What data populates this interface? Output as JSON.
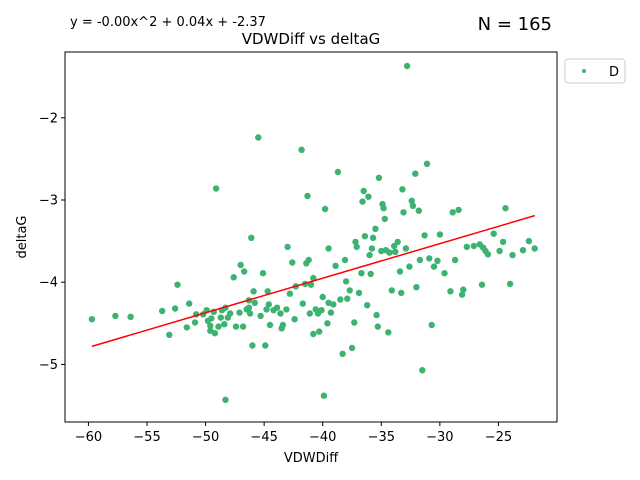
{
  "chart_data": {
    "type": "scatter",
    "title": "VDWDiff vs deltaG",
    "xlabel": "VDWDiff",
    "ylabel": "deltaG",
    "equation": "y = -0.00x^2 + 0.04x + -2.37",
    "n_label": "N = 165",
    "legend": {
      "label": "D",
      "placement": "top-right outside"
    },
    "xlim": [
      -62,
      -20
    ],
    "ylim": [
      -5.7,
      -1.2
    ],
    "xticks": [
      -60,
      -55,
      -50,
      -45,
      -40,
      -35,
      -30,
      -25
    ],
    "yticks": [
      -5,
      -4,
      -3,
      -2
    ],
    "xtick_labels": [
      "−60",
      "−55",
      "−50",
      "−45",
      "−40",
      "−35",
      "−30",
      "−25"
    ],
    "ytick_labels": [
      "−5",
      "−4",
      "−3",
      "−2"
    ],
    "grid": false,
    "point_color": "#3cb371",
    "fit_color": "#ff0000",
    "fit_line": [
      [
        -59.7,
        -4.78
      ],
      [
        -21.9,
        -3.19
      ]
    ],
    "points": [
      [
        -59.7,
        -4.45
      ],
      [
        -57.7,
        -4.41
      ],
      [
        -56.4,
        -4.42
      ],
      [
        -53.7,
        -4.35
      ],
      [
        -53.1,
        -4.64
      ],
      [
        -52.6,
        -4.32
      ],
      [
        -52.4,
        -4.03
      ],
      [
        -51.6,
        -4.55
      ],
      [
        -51.4,
        -4.26
      ],
      [
        -50.9,
        -4.49
      ],
      [
        -50.8,
        -4.39
      ],
      [
        -50.2,
        -4.39
      ],
      [
        -49.9,
        -4.34
      ],
      [
        -49.8,
        -4.47
      ],
      [
        -49.6,
        -4.53
      ],
      [
        -49.6,
        -4.59
      ],
      [
        -49.5,
        -4.44
      ],
      [
        -49.3,
        -4.36
      ],
      [
        -49.2,
        -4.62
      ],
      [
        -49.1,
        -2.86
      ],
      [
        -48.9,
        -4.54
      ],
      [
        -48.7,
        -4.43
      ],
      [
        -48.6,
        -4.34
      ],
      [
        -48.4,
        -4.51
      ],
      [
        -48.3,
        -4.31
      ],
      [
        -48.3,
        -5.43
      ],
      [
        -48.1,
        -4.43
      ],
      [
        -47.9,
        -4.38
      ],
      [
        -47.6,
        -3.94
      ],
      [
        -47.4,
        -4.54
      ],
      [
        -47.1,
        -4.37
      ],
      [
        -47.0,
        -3.79
      ],
      [
        -46.8,
        -4.54
      ],
      [
        -46.7,
        -3.87
      ],
      [
        -46.5,
        -4.33
      ],
      [
        -46.3,
        -4.22
      ],
      [
        -46.3,
        -4.31
      ],
      [
        -46.2,
        -4.38
      ],
      [
        -46.1,
        -3.46
      ],
      [
        -46.0,
        -4.77
      ],
      [
        -45.9,
        -4.11
      ],
      [
        -45.8,
        -4.25
      ],
      [
        -45.5,
        -2.24
      ],
      [
        -45.3,
        -4.41
      ],
      [
        -45.1,
        -3.89
      ],
      [
        -44.9,
        -4.77
      ],
      [
        -44.8,
        -4.33
      ],
      [
        -44.7,
        -4.11
      ],
      [
        -44.6,
        -4.27
      ],
      [
        -44.5,
        -4.52
      ],
      [
        -44.2,
        -4.34
      ],
      [
        -43.9,
        -4.31
      ],
      [
        -43.6,
        -4.38
      ],
      [
        -43.5,
        -4.56
      ],
      [
        -43.4,
        -4.52
      ],
      [
        -43.1,
        -4.33
      ],
      [
        -43.0,
        -3.57
      ],
      [
        -42.8,
        -4.14
      ],
      [
        -42.6,
        -3.76
      ],
      [
        -42.4,
        -4.45
      ],
      [
        -42.3,
        -4.05
      ],
      [
        -41.8,
        -2.39
      ],
      [
        -41.7,
        -4.26
      ],
      [
        -41.5,
        -4.02
      ],
      [
        -41.4,
        -3.77
      ],
      [
        -41.3,
        -2.95
      ],
      [
        -41.2,
        -3.73
      ],
      [
        -41.1,
        -4.38
      ],
      [
        -41.0,
        -4.03
      ],
      [
        -40.8,
        -3.95
      ],
      [
        -40.8,
        -4.63
      ],
      [
        -40.6,
        -4.33
      ],
      [
        -40.4,
        -4.38
      ],
      [
        -40.3,
        -4.6
      ],
      [
        -40.1,
        -4.34
      ],
      [
        -40.0,
        -4.18
      ],
      [
        -39.9,
        -5.38
      ],
      [
        -39.8,
        -3.11
      ],
      [
        -39.6,
        -4.5
      ],
      [
        -39.5,
        -4.25
      ],
      [
        -39.3,
        -4.37
      ],
      [
        -39.1,
        -4.27
      ],
      [
        -38.9,
        -3.8
      ],
      [
        -38.7,
        -2.66
      ],
      [
        -38.5,
        -4.21
      ],
      [
        -38.3,
        -4.87
      ],
      [
        -38.1,
        -3.73
      ],
      [
        -38.0,
        -3.99
      ],
      [
        -37.9,
        -4.2
      ],
      [
        -37.7,
        -4.1
      ],
      [
        -37.5,
        -4.8
      ],
      [
        -37.3,
        -4.49
      ],
      [
        -37.2,
        -3.51
      ],
      [
        -37.1,
        -3.57
      ],
      [
        -36.9,
        -4.13
      ],
      [
        -36.7,
        -3.89
      ],
      [
        -36.6,
        -3.02
      ],
      [
        -36.5,
        -2.89
      ],
      [
        -36.4,
        -3.44
      ],
      [
        -36.2,
        -4.28
      ],
      [
        -36.1,
        -2.96
      ],
      [
        -36.0,
        -3.67
      ],
      [
        -35.9,
        -3.9
      ],
      [
        -35.8,
        -3.59
      ],
      [
        -35.7,
        -3.46
      ],
      [
        -35.5,
        -3.35
      ],
      [
        -35.4,
        -4.4
      ],
      [
        -35.3,
        -4.54
      ],
      [
        -35.2,
        -2.73
      ],
      [
        -35.0,
        -3.62
      ],
      [
        -34.9,
        -3.05
      ],
      [
        -34.8,
        -3.1
      ],
      [
        -34.7,
        -3.23
      ],
      [
        -34.6,
        -3.61
      ],
      [
        -34.4,
        -4.61
      ],
      [
        -34.3,
        -3.64
      ],
      [
        -34.1,
        -4.1
      ],
      [
        -33.9,
        -3.56
      ],
      [
        -33.8,
        -3.63
      ],
      [
        -33.6,
        -3.51
      ],
      [
        -33.4,
        -3.87
      ],
      [
        -33.3,
        -4.13
      ],
      [
        -33.2,
        -2.87
      ],
      [
        -33.1,
        -3.15
      ],
      [
        -32.9,
        -3.59
      ],
      [
        -32.8,
        -1.37
      ],
      [
        -32.6,
        -3.81
      ],
      [
        -32.4,
        -3.01
      ],
      [
        -32.3,
        -3.07
      ],
      [
        -32.1,
        -2.68
      ],
      [
        -32.0,
        -4.06
      ],
      [
        -31.8,
        -3.13
      ],
      [
        -31.7,
        -3.73
      ],
      [
        -31.5,
        -5.07
      ],
      [
        -31.3,
        -3.43
      ],
      [
        -31.1,
        -2.56
      ],
      [
        -30.9,
        -3.71
      ],
      [
        -30.7,
        -4.52
      ],
      [
        -30.5,
        -3.81
      ],
      [
        -30.2,
        -3.74
      ],
      [
        -30.0,
        -3.42
      ],
      [
        -29.6,
        -3.89
      ],
      [
        -29.1,
        -4.11
      ],
      [
        -28.9,
        -3.15
      ],
      [
        -28.7,
        -3.73
      ],
      [
        -28.4,
        -3.12
      ],
      [
        -28.1,
        -4.15
      ],
      [
        -28.0,
        -4.09
      ],
      [
        -27.7,
        -3.57
      ],
      [
        -27.1,
        -3.56
      ],
      [
        -26.6,
        -3.54
      ],
      [
        -26.3,
        -3.58
      ],
      [
        -26.1,
        -3.62
      ],
      [
        -25.9,
        -3.66
      ],
      [
        -25.4,
        -3.41
      ],
      [
        -24.9,
        -3.62
      ],
      [
        -24.6,
        -3.51
      ],
      [
        -24.4,
        -3.1
      ],
      [
        -24.0,
        -4.02
      ],
      [
        -23.8,
        -3.67
      ],
      [
        -22.9,
        -3.61
      ],
      [
        -22.4,
        -3.5
      ],
      [
        -21.9,
        -3.59
      ],
      [
        -26.4,
        -4.03
      ],
      [
        -39.5,
        -3.59
      ]
    ]
  }
}
